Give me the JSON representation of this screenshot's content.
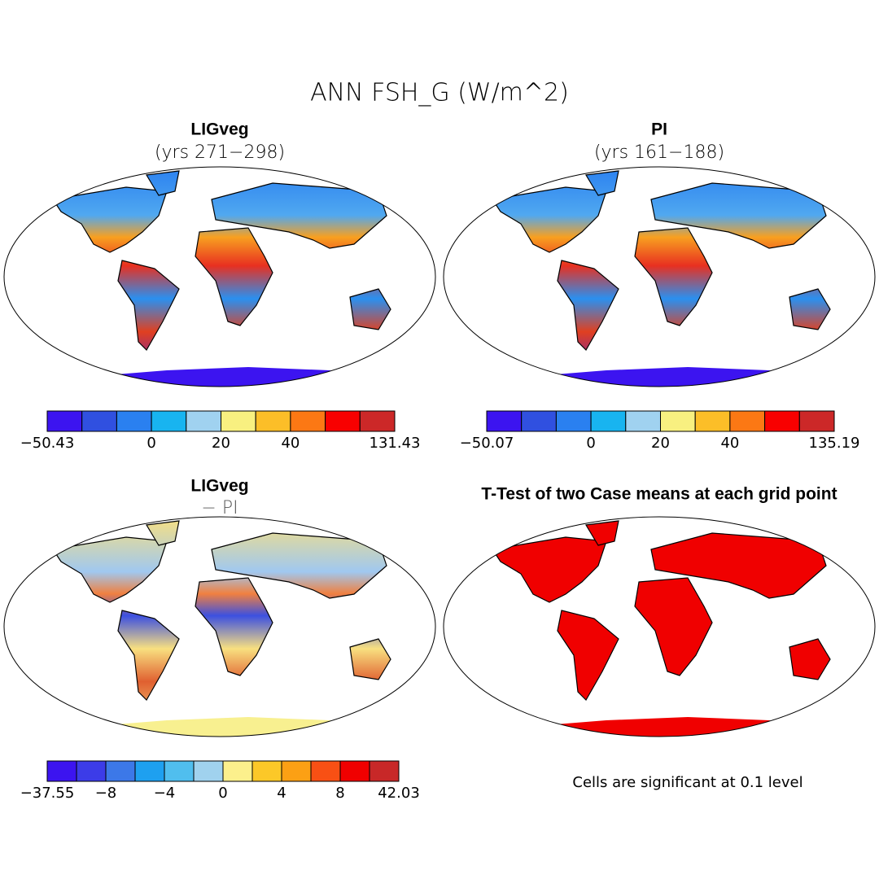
{
  "title": "ANN FSH_G (W/m^2)",
  "panels": [
    {
      "title": "LIGveg",
      "subtitle": "(yrs 271−298)",
      "colorbar": {
        "colors": [
          "#3c14f0",
          "#3050e0",
          "#2a80f0",
          "#18b4f0",
          "#a0d2f0",
          "#f8f080",
          "#fcbe28",
          "#fc7814",
          "#f80000",
          "#cc2828"
        ],
        "labels": [
          "−50.43",
          null,
          null,
          "0",
          null,
          "20",
          null,
          "40",
          null,
          null,
          "131.43"
        ]
      }
    },
    {
      "title": "PI",
      "subtitle": "(yrs 161−188)",
      "colorbar": {
        "colors": [
          "#3c14f0",
          "#3050e0",
          "#2a80f0",
          "#18b4f0",
          "#a0d2f0",
          "#f8f080",
          "#fcbe28",
          "#fc7814",
          "#f80000",
          "#cc2828"
        ],
        "labels": [
          "−50.07",
          null,
          null,
          "0",
          null,
          "20",
          null,
          "40",
          null,
          null,
          "135.19"
        ]
      }
    },
    {
      "title": "LIGveg",
      "subtitle": "− PI",
      "colorbar": {
        "colors": [
          "#3c14f0",
          "#3c3ce8",
          "#3c78e8",
          "#1ea0f0",
          "#50beee",
          "#a0d2ee",
          "#fcf08c",
          "#fcc828",
          "#fca014",
          "#f85014",
          "#f00000",
          "#c82828"
        ],
        "labels": [
          "−37.55",
          null,
          "−8",
          null,
          "−4",
          null,
          "0",
          null,
          "4",
          null,
          "8",
          null,
          "42.03"
        ]
      }
    },
    {
      "title": "T-Test of two Case means at each grid point",
      "note": "Cells are significant at 0.1 level"
    }
  ]
}
